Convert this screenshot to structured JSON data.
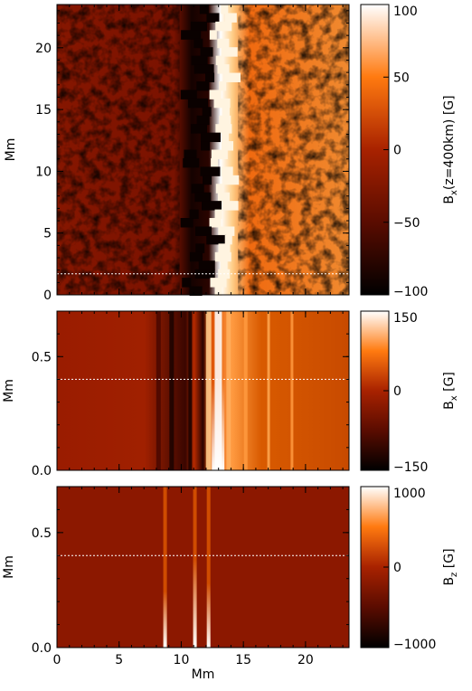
{
  "chart_data": [
    {
      "type": "heatmap",
      "panel": "top",
      "xlabel": "",
      "ylabel": "Mm",
      "xlim": [
        0,
        23.5
      ],
      "ylim": [
        0,
        23.5
      ],
      "x_ticks": [],
      "y_ticks": [
        "0",
        "5",
        "10",
        "15",
        "20"
      ],
      "y_tick_values": [
        0,
        5,
        10,
        15,
        20
      ],
      "colorbar": {
        "label_main": "B",
        "label_sub": "x",
        "label_rest": "(z=400km) [G]",
        "range": [
          -100,
          100
        ],
        "ticks": [
          "100",
          "50",
          "0",
          "−50",
          "−100"
        ],
        "tick_values": [
          100,
          50,
          0,
          -50,
          -100
        ]
      },
      "dashed_line_y": 1.7
    },
    {
      "type": "heatmap",
      "panel": "middle",
      "xlabel": "",
      "ylabel": "Mm",
      "xlim": [
        0,
        23.5
      ],
      "ylim": [
        0,
        0.7
      ],
      "x_ticks": [],
      "y_ticks": [
        "0.0",
        "0.5"
      ],
      "y_tick_values": [
        0,
        0.5
      ],
      "colorbar": {
        "label_main": "B",
        "label_sub": "x",
        "label_rest": " [G]",
        "range": [
          -150,
          150
        ],
        "ticks": [
          "150",
          "0",
          "−150"
        ],
        "tick_values": [
          150,
          0,
          -150
        ]
      },
      "dashed_line_y": 0.4
    },
    {
      "type": "heatmap",
      "panel": "bottom",
      "xlabel": "Mm",
      "ylabel": "Mm",
      "xlim": [
        0,
        23.5
      ],
      "ylim": [
        0,
        0.7
      ],
      "x_ticks": [
        "0",
        "5",
        "10",
        "15",
        "20"
      ],
      "x_tick_values": [
        0,
        5,
        10,
        15,
        20
      ],
      "y_ticks": [
        "0.0",
        "0.5"
      ],
      "y_tick_values": [
        0,
        0.5
      ],
      "colorbar": {
        "label_main": "B",
        "label_sub": "z",
        "label_rest": " [G]",
        "range": [
          -1000,
          1000
        ],
        "ticks": [
          "1000",
          "0",
          "−1000"
        ],
        "tick_values": [
          1000,
          0,
          -1000
        ]
      },
      "dashed_line_y": 0.4
    }
  ],
  "colors": {
    "map_dark": "#000000",
    "map_mid": "#9a1a00",
    "map_bright": "#ff7a00",
    "map_light": "#ffffff",
    "dashed_line": "#ffffff"
  }
}
